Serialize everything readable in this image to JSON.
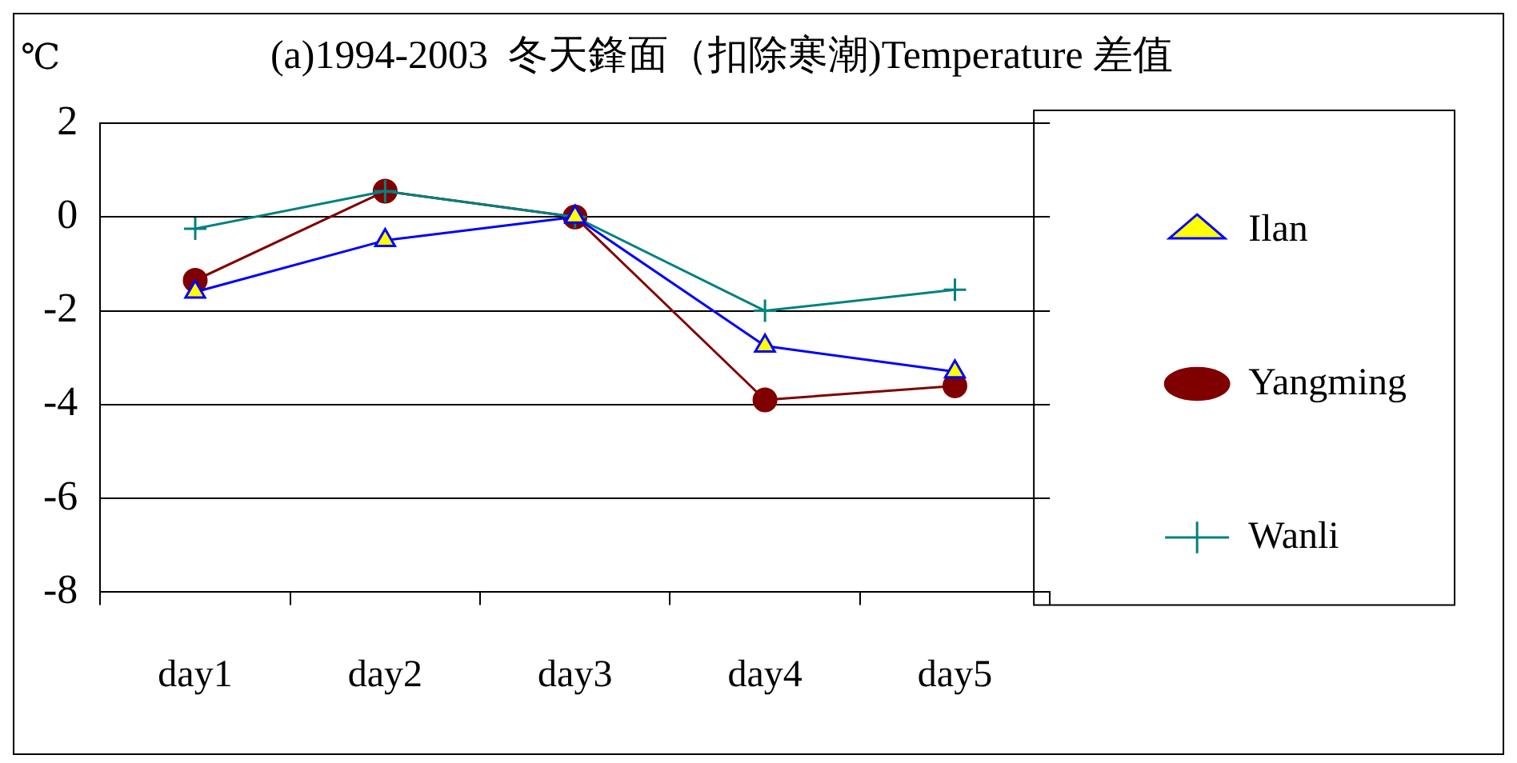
{
  "chart_data": {
    "type": "line",
    "title": "(a)1994-2003  冬天鋒面（扣除寒潮)Temperature 差值",
    "ylabel": "℃",
    "categories": [
      "day1",
      "day2",
      "day3",
      "day4",
      "day5"
    ],
    "series": [
      {
        "name": "Ilan",
        "color": "#0000ff",
        "marker": "triangle",
        "values": [
          -1.6,
          -0.5,
          0,
          -2.75,
          -3.3
        ]
      },
      {
        "name": "Yangming",
        "color": "#800000",
        "marker": "circle",
        "values": [
          -1.35,
          0.55,
          0,
          -3.9,
          -3.6
        ]
      },
      {
        "name": "Wanli",
        "color": "#008080",
        "marker": "cross",
        "values": [
          -0.25,
          0.55,
          0,
          -2.0,
          -1.55
        ]
      }
    ],
    "ylim": [
      -8,
      2
    ],
    "yticks": [
      -8,
      -6,
      -4,
      -2,
      0,
      2
    ],
    "grid": "y",
    "legend": "right"
  }
}
